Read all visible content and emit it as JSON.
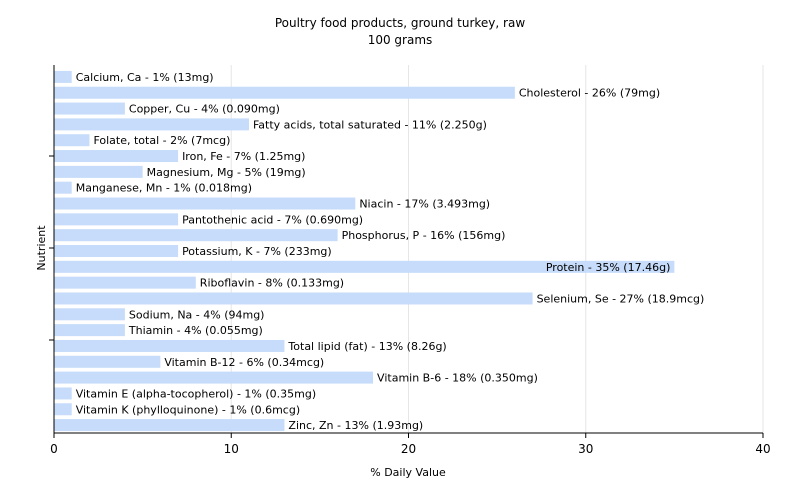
{
  "chart_data": {
    "type": "bar",
    "orientation": "horizontal",
    "title": "Poultry food products, ground turkey, raw",
    "subtitle": "100 grams",
    "xlabel": "% Daily Value",
    "ylabel": "Nutrient",
    "xlim": [
      0,
      40
    ],
    "xticks": [
      "0",
      "10",
      "20",
      "30",
      "40"
    ],
    "grid": true,
    "bar_color": "#c6dcfa",
    "grid_color": "#e6e6e6",
    "categories": [
      "Calcium, Ca",
      "Cholesterol",
      "Copper, Cu",
      "Fatty acids, total saturated",
      "Folate, total",
      "Iron, Fe",
      "Magnesium, Mg",
      "Manganese, Mn",
      "Niacin",
      "Pantothenic acid",
      "Phosphorus, P",
      "Potassium, K",
      "Protein",
      "Riboflavin",
      "Selenium, Se",
      "Sodium, Na",
      "Thiamin",
      "Total lipid (fat)",
      "Vitamin B-12",
      "Vitamin B-6",
      "Vitamin E (alpha-tocopherol)",
      "Vitamin K (phylloquinone)",
      "Zinc, Zn"
    ],
    "values": [
      1,
      26,
      4,
      11,
      2,
      7,
      5,
      1,
      17,
      7,
      16,
      7,
      35,
      8,
      27,
      4,
      4,
      13,
      6,
      18,
      1,
      1,
      13
    ],
    "labels": [
      "Calcium, Ca - 1% (13mg)",
      "Cholesterol - 26% (79mg)",
      "Copper, Cu - 4% (0.090mg)",
      "Fatty acids, total saturated - 11% (2.250g)",
      "Folate, total - 2% (7mcg)",
      "Iron, Fe - 7% (1.25mg)",
      "Magnesium, Mg - 5% (19mg)",
      "Manganese, Mn - 1% (0.018mg)",
      "Niacin - 17% (3.493mg)",
      "Pantothenic acid - 7% (0.690mg)",
      "Phosphorus, P - 16% (156mg)",
      "Potassium, K - 7% (233mg)",
      "Protein - 35% (17.46g)",
      "Riboflavin - 8% (0.133mg)",
      "Selenium, Se - 27% (18.9mcg)",
      "Sodium, Na - 4% (94mg)",
      "Thiamin - 4% (0.055mg)",
      "Total lipid (fat) - 13% (8.26g)",
      "Vitamin B-12 - 6% (0.34mcg)",
      "Vitamin B-6 - 18% (0.350mg)",
      "Vitamin E (alpha-tocopherol) - 1% (0.35mg)",
      "Vitamin K (phylloquinone) - 1% (0.6mcg)",
      "Zinc, Zn - 13% (1.93mg)"
    ],
    "inside_label_categories": [
      "Protein"
    ]
  }
}
